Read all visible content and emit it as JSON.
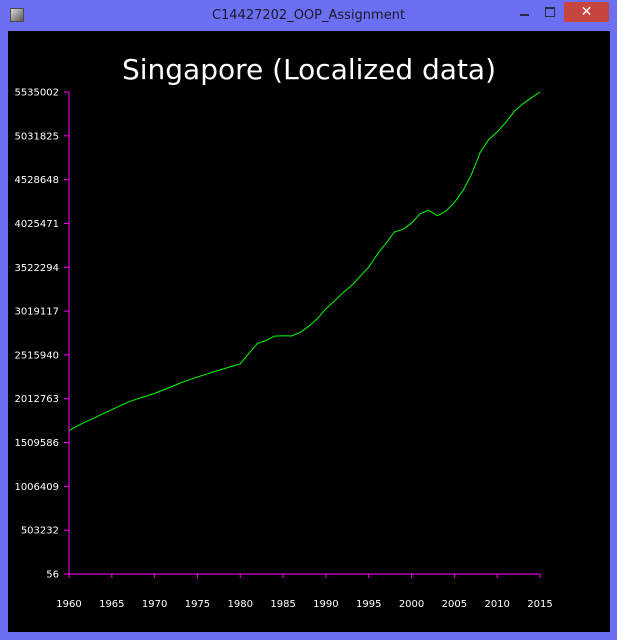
{
  "window": {
    "title": "C14427202_OOP_Assignment",
    "close_label": "✕",
    "background_color": "#6b6ff2"
  },
  "chart_data": {
    "type": "line",
    "title": "Singapore (Localized data)",
    "xlabel": "",
    "ylabel": "",
    "background_color": "#000000",
    "axis_color": "#ff00ff",
    "line_color": "#00ff00",
    "text_color": "#ffffff",
    "grid": false,
    "xlim": [
      1960,
      2015
    ],
    "ylim": [
      56,
      5535002
    ],
    "x_ticks": [
      1960,
      1965,
      1970,
      1975,
      1980,
      1985,
      1990,
      1995,
      2000,
      2005,
      2010,
      2015
    ],
    "y_ticks": [
      56,
      503232,
      1006409,
      1509586,
      2012763,
      2515940,
      3019117,
      3522294,
      4025471,
      4528648,
      5031825,
      5535002
    ],
    "series": [
      {
        "x": [
          1960,
          1961,
          1962,
          1963,
          1964,
          1965,
          1966,
          1967,
          1968,
          1969,
          1970,
          1971,
          1972,
          1973,
          1974,
          1975,
          1976,
          1977,
          1978,
          1979,
          1980,
          1981,
          1982,
          1983,
          1984,
          1985,
          1986,
          1987,
          1988,
          1989,
          1990,
          1991,
          1992,
          1993,
          1994,
          1995,
          1996,
          1997,
          1998,
          1999,
          2000,
          2001,
          2002,
          2003,
          2004,
          2005,
          2006,
          2007,
          2008,
          2009,
          2010,
          2011,
          2012,
          2013,
          2014,
          2015
        ],
        "values": [
          1646400,
          1702400,
          1750200,
          1795000,
          1841600,
          1886900,
          1934400,
          1977600,
          2012000,
          2043000,
          2074500,
          2112900,
          2152400,
          2193000,
          2229800,
          2262600,
          2293300,
          2325300,
          2353600,
          2383500,
          2413900,
          2532800,
          2646500,
          2681100,
          2732200,
          2736000,
          2733400,
          2774800,
          2846100,
          2930900,
          3047100,
          3135100,
          3230700,
          3313500,
          3419000,
          3524500,
          3670700,
          3796000,
          3927200,
          3958700,
          4027900,
          4138000,
          4176000,
          4114800,
          4166700,
          4265800,
          4401400,
          4588600,
          4839400,
          4987600,
          5076700,
          5183700,
          5312400,
          5399200,
          5469700,
          5535000
        ]
      }
    ]
  }
}
